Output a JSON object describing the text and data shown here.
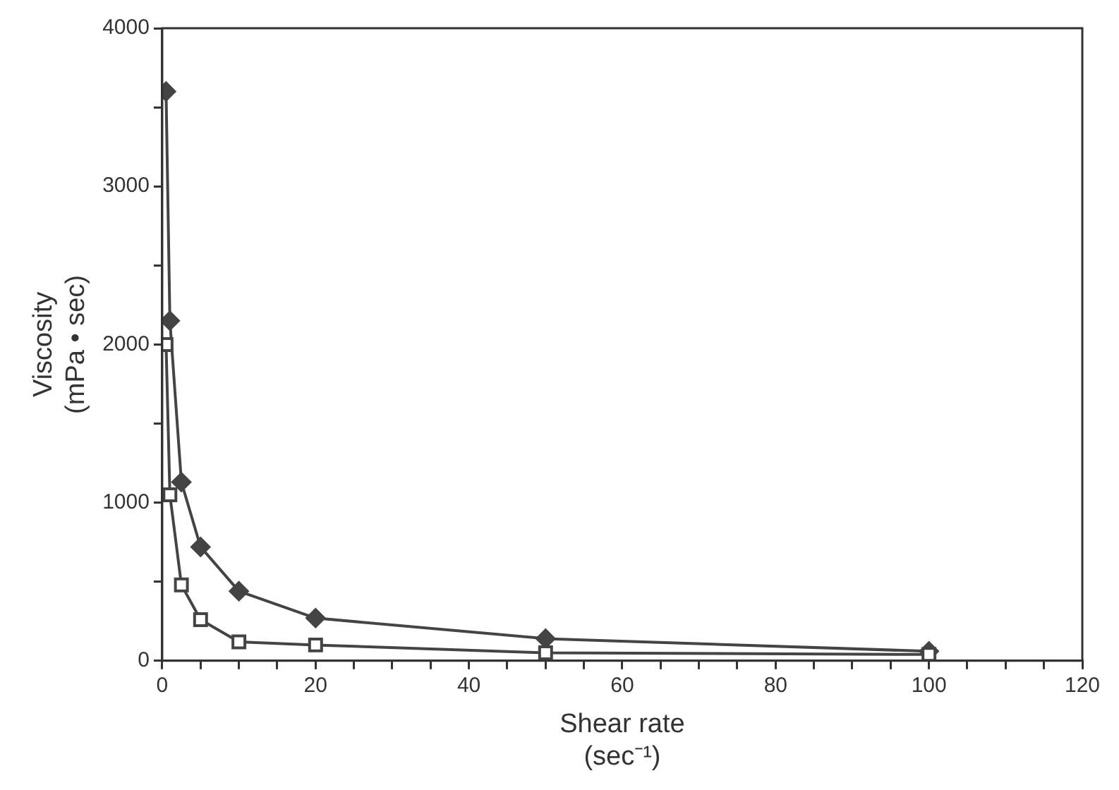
{
  "chart_data": {
    "type": "line",
    "xlabel": "Shear rate\n(sec⁻¹)",
    "ylabel": "Viscosity\n(mPa • sec)",
    "xlim": [
      0,
      120
    ],
    "ylim": [
      0,
      4000
    ],
    "xticks": [
      0,
      {
        "value": 5,
        "label": null
      },
      {
        "value": 10,
        "label": null
      },
      {
        "value": 15,
        "label": null
      },
      20,
      {
        "value": 25,
        "label": null
      },
      {
        "value": 30,
        "label": null
      },
      {
        "value": 35,
        "label": null
      },
      40,
      {
        "value": 45,
        "label": null
      },
      {
        "value": 50,
        "label": null
      },
      {
        "value": 55,
        "label": null
      },
      60,
      {
        "value": 65,
        "label": null
      },
      {
        "value": 70,
        "label": null
      },
      {
        "value": 75,
        "label": null
      },
      80,
      {
        "value": 85,
        "label": null
      },
      {
        "value": 90,
        "label": null
      },
      {
        "value": 95,
        "label": null
      },
      100,
      {
        "value": 105,
        "label": null
      },
      {
        "value": 110,
        "label": null
      },
      {
        "value": 115,
        "label": null
      },
      120
    ],
    "yticks": [
      0,
      {
        "value": 500,
        "label": null
      },
      1000,
      {
        "value": 1500,
        "label": null
      },
      2000,
      {
        "value": 2500,
        "label": null
      },
      3000,
      {
        "value": 3500,
        "label": null
      },
      4000
    ],
    "grid": false,
    "legend": false,
    "series": [
      {
        "color": "#444444",
        "marker": "diamond",
        "x": [
          0.5,
          1,
          2.5,
          5,
          10,
          20,
          50,
          100
        ],
        "values": [
          3600,
          2150,
          1130,
          720,
          440,
          270,
          140,
          60
        ]
      },
      {
        "color": "#444444",
        "marker": "square",
        "x": [
          0.5,
          1,
          2.5,
          5,
          10,
          20,
          50,
          100
        ],
        "values": [
          2000,
          1050,
          480,
          260,
          120,
          100,
          50,
          40
        ]
      }
    ]
  }
}
